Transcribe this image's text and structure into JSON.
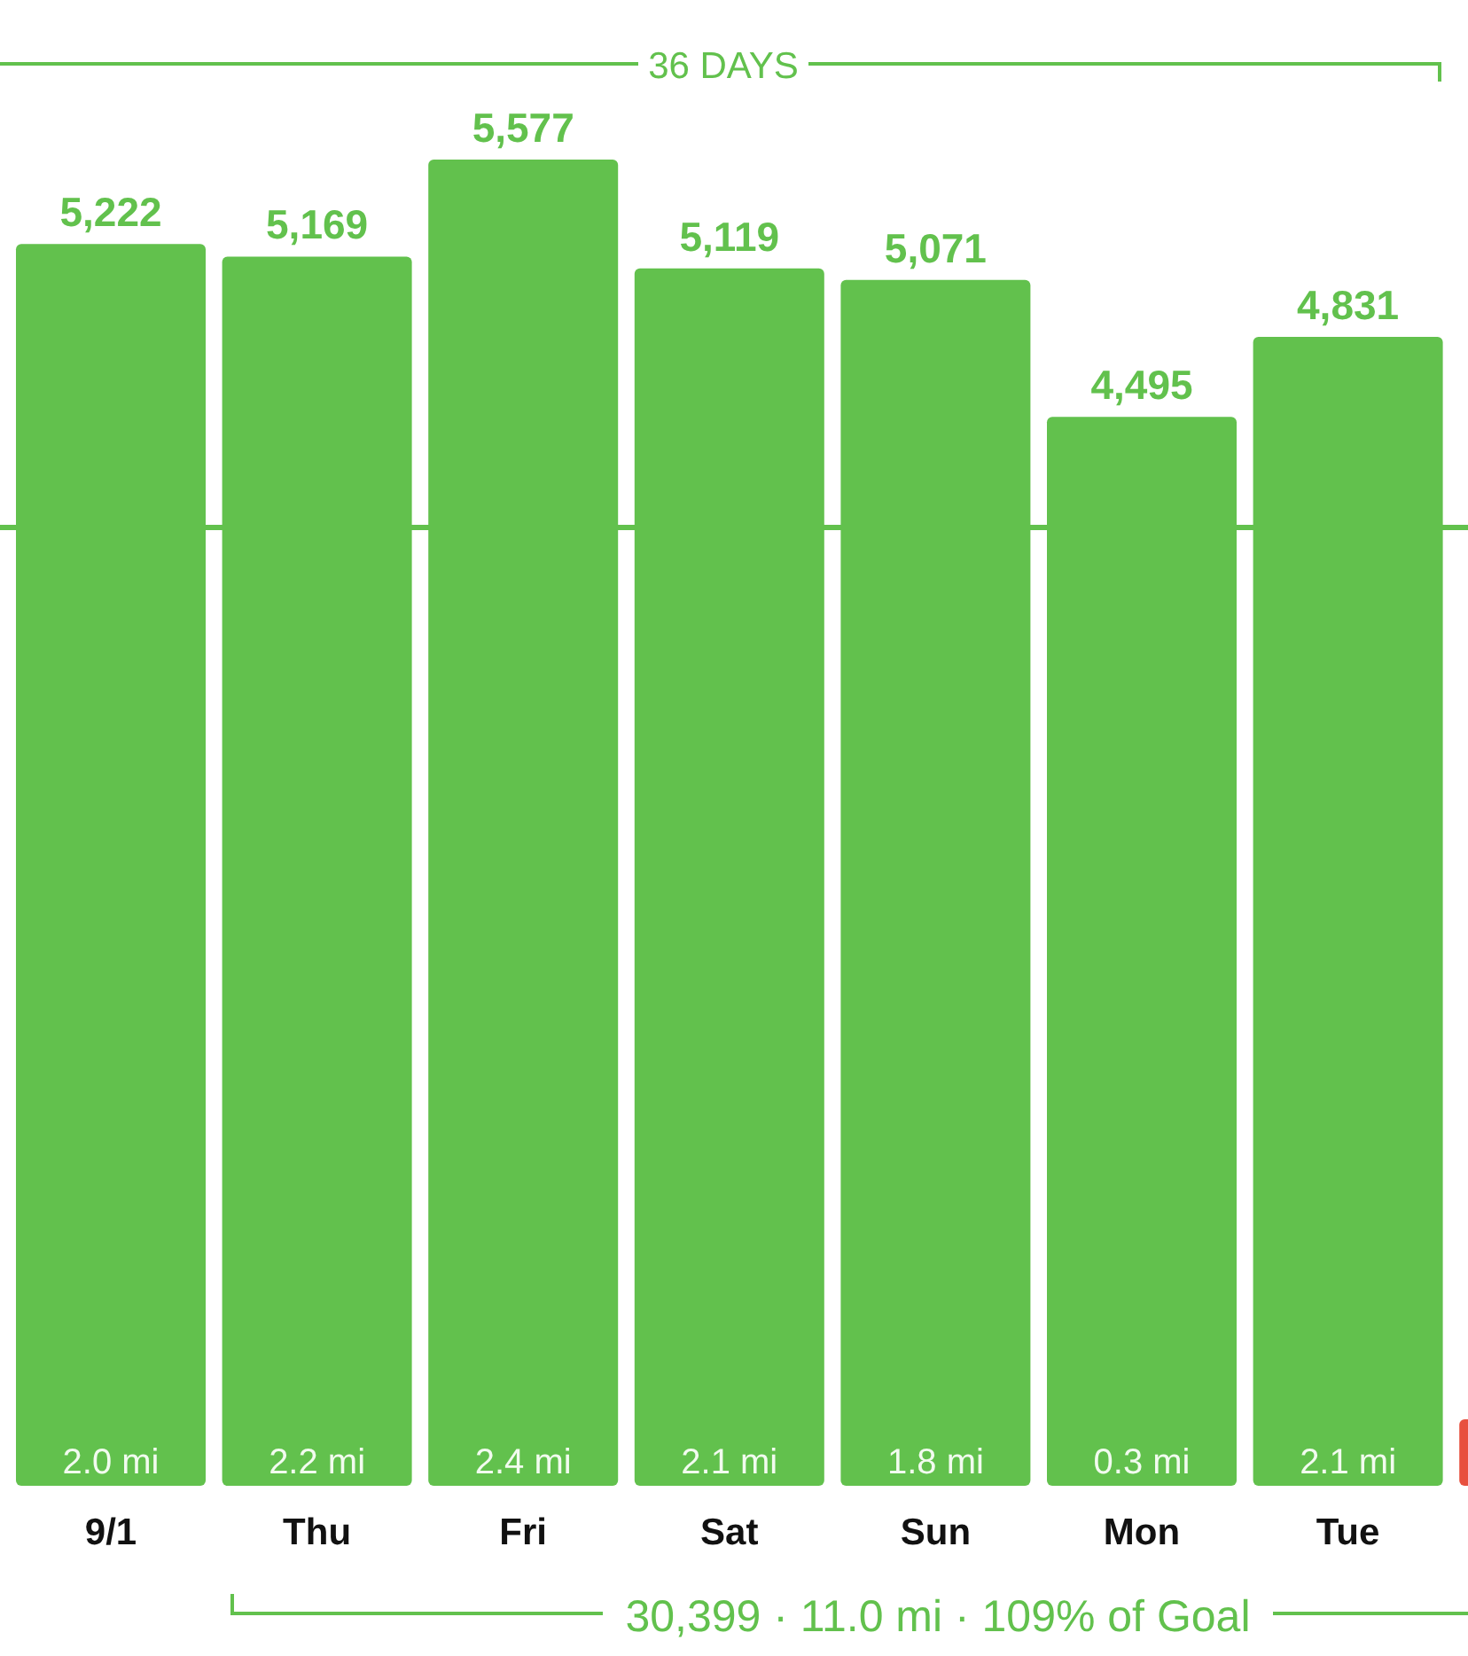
{
  "chart_data": {
    "type": "bar",
    "categories": [
      "9/1",
      "Thu",
      "Fri",
      "Sat",
      "Sun",
      "Mon",
      "Tue",
      null
    ],
    "values": [
      5222,
      5169,
      5577,
      5119,
      5071,
      4495,
      4831,
      280
    ],
    "colors": [
      "#62c14d",
      "#62c14d",
      "#62c14d",
      "#62c14d",
      "#62c14d",
      "#62c14d",
      "#62c14d",
      "#e8503e"
    ],
    "value_labels": [
      "5,222",
      "5,169",
      "5,577",
      "5,119",
      "5,071",
      "4,495",
      "4,831",
      null
    ],
    "ref_lines": [
      {
        "axis": "y",
        "value": 4030,
        "color": "#62c14d"
      }
    ],
    "annotations": [
      "36 DAYS",
      "30,399 · 11.0 mi · 109% of Goal",
      "2.0 mi",
      "2.2 mi",
      "2.4 mi",
      "2.1 mi",
      "1.8 mi",
      "0.3 mi",
      "2.1 mi"
    ]
  }
}
